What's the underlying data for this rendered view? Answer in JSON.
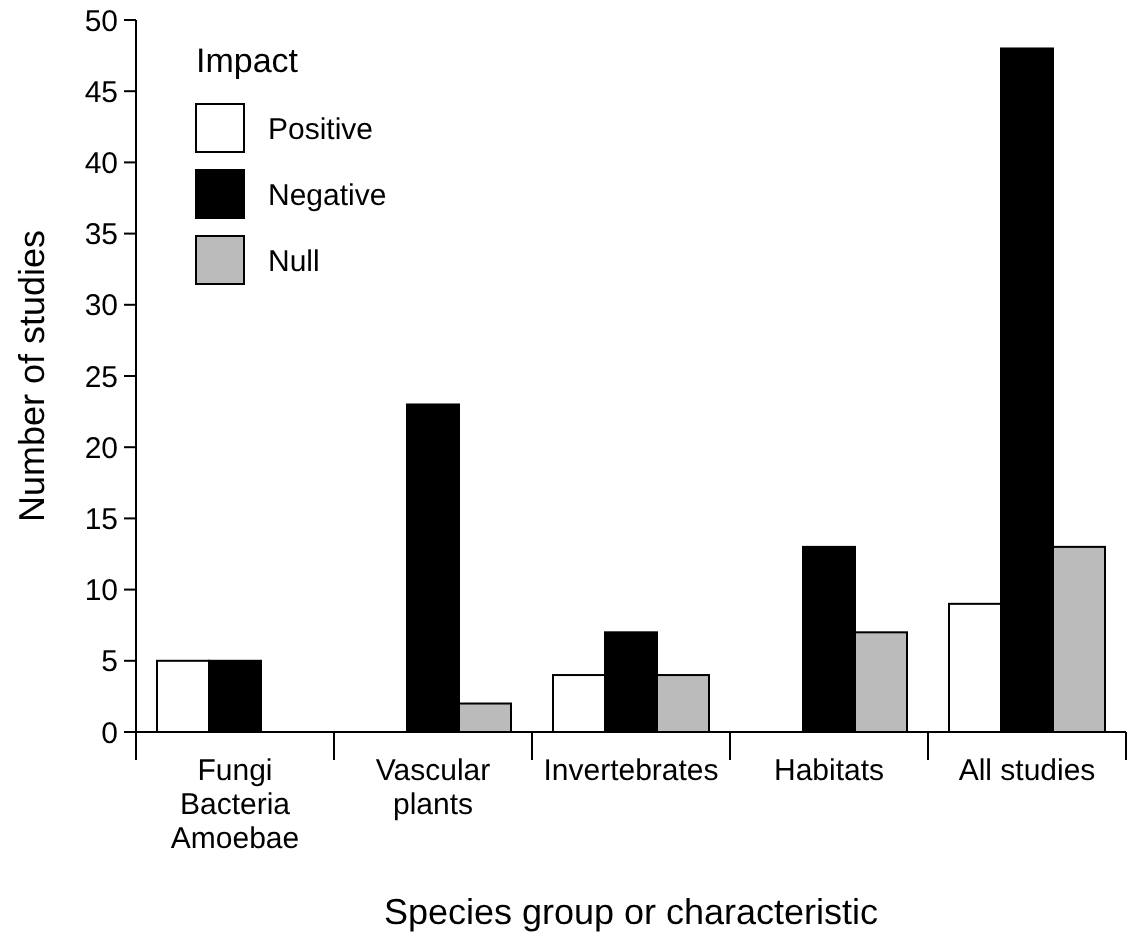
{
  "chart_data": {
    "type": "bar",
    "xlabel": "Species group or characteristic",
    "ylabel": "Number of studies",
    "legend_title": "Impact",
    "legend": "top left",
    "categories": [
      "Fungi\nBacteria\nAmoebae",
      "Vascular\nplants",
      "Invertebrates",
      "Habitats",
      "All studies"
    ],
    "series": [
      {
        "name": "Positive",
        "color": "#ffffff",
        "values": [
          5,
          0,
          4,
          0,
          9
        ]
      },
      {
        "name": "Negative",
        "color": "#000000",
        "values": [
          5,
          23,
          7,
          13,
          48
        ]
      },
      {
        "name": "Null",
        "color": "#bbbbbb",
        "values": [
          0,
          2,
          4,
          7,
          13
        ]
      }
    ],
    "ylim": [
      0,
      50
    ],
    "yticks": [
      0,
      5,
      10,
      15,
      20,
      25,
      30,
      35,
      40,
      45,
      50
    ],
    "grid": false
  }
}
